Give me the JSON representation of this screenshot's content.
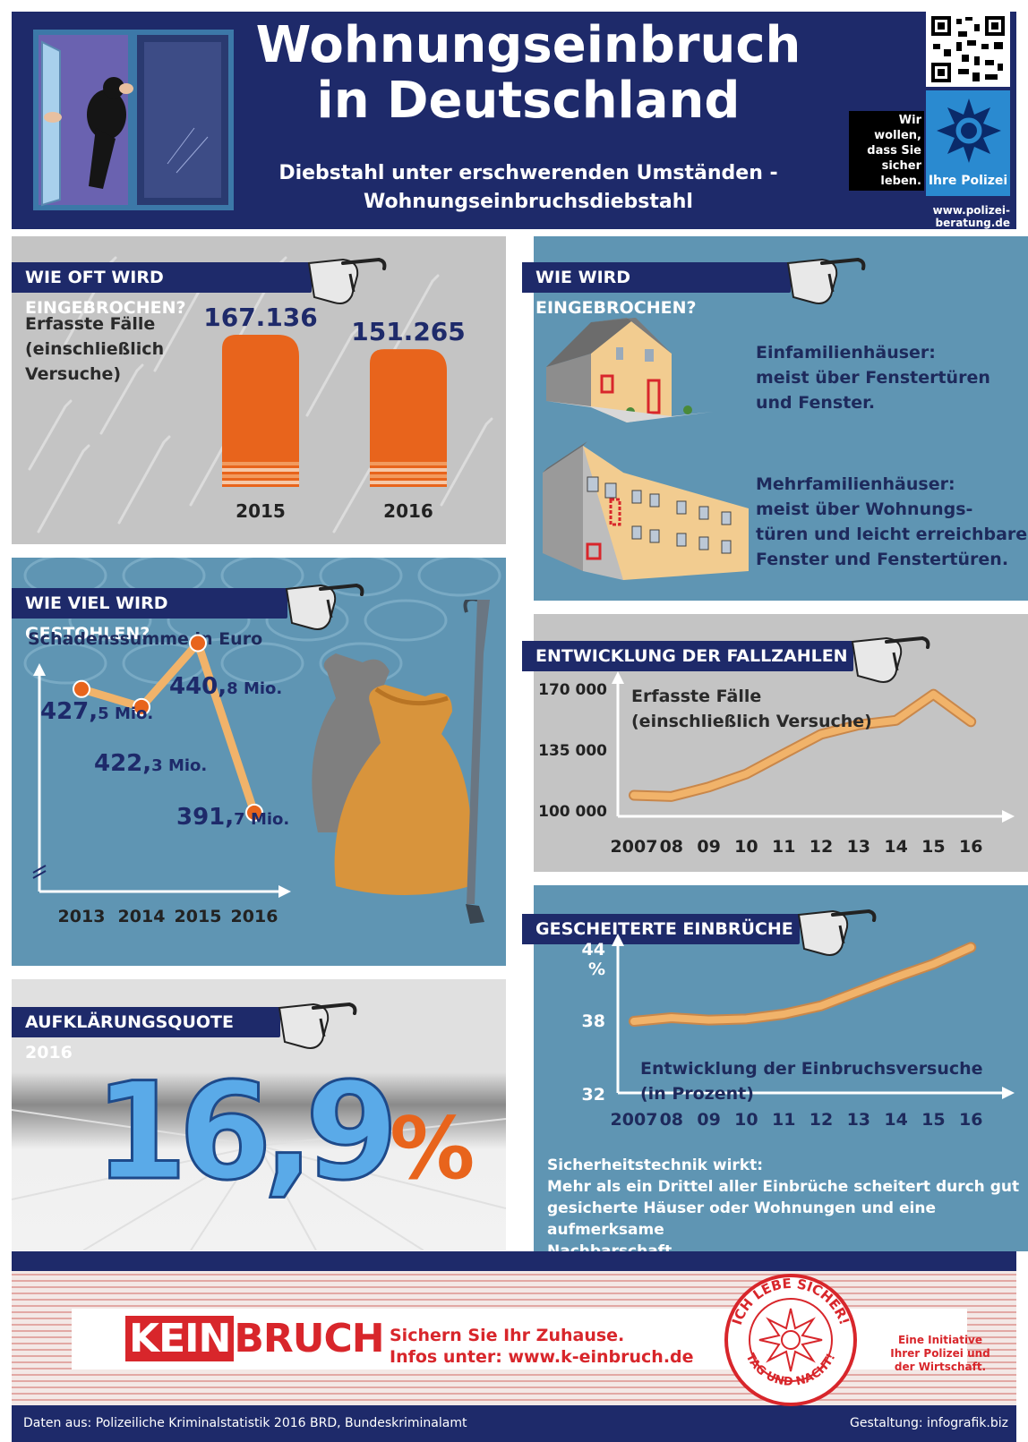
{
  "header": {
    "title_line1": "Wohnungseinbruch",
    "title_line2": "in Deutschland",
    "subtitle_line1": "Diebstahl unter erschwerenden Umständen -",
    "subtitle_line2": "Wohnungseinbruchsdiebstahl",
    "police_slogan_l1": "Wir wollen,",
    "police_slogan_l2": "dass Sie",
    "police_slogan_l3": "sicher leben.",
    "police_name": "Ihre Polizei",
    "url": "www.polizei-beratung.de"
  },
  "sections": {
    "how_often": {
      "title": "WIE OFT WIRD EINGEBROCHEN?",
      "caption_l1": "Erfasste Fälle",
      "caption_l2": "(einschließlich",
      "caption_l3": "Versuche)"
    },
    "how": {
      "title": "WIE WIRD EINGEBROCHEN?",
      "single_l1": "Einfamilienhäuser:",
      "single_l2": "meist über Fenstertüren",
      "single_l3": "und Fenster.",
      "multi_l1": "Mehrfamilienhäuser:",
      "multi_l2": "meist über Wohnungs-",
      "multi_l3": "türen und leicht erreichbare",
      "multi_l4": "Fenster und Fenstertüren."
    },
    "how_much": {
      "title": "WIE VIEL WIRD GESTOHLEN?",
      "caption": "Schadenssumme in Euro"
    },
    "development": {
      "title": "ENTWICKLUNG DER FALLZAHLEN",
      "caption_l1": "Erfasste Fälle",
      "caption_l2": "(einschließlich Versuche)"
    },
    "clearance": {
      "title": "AUFKLÄRUNGSQUOTE 2016",
      "value_num": "16,9",
      "value_pct": "%"
    },
    "failed": {
      "title": "GESCHEITERTE EINBRÜCHE",
      "caption_l1": "Entwicklung der Einbruchsversuche",
      "caption_l2": "(in Prozent)",
      "note_l1": "Sicherheitstechnik wirkt:",
      "note_l2": "Mehr als ein Drittel aller Einbrüche scheitert durch gut",
      "note_l3": "gesicherte Häuser oder Wohnungen und eine aufmerksame",
      "note_l4": "Nachbarschaft."
    }
  },
  "footer": {
    "brand_kein": "KEIN",
    "brand_bruch": "BRUCH",
    "tag_l1": "Sichern Sie Ihr Zuhause.",
    "tag_l2": "Infos unter: www.k-einbruch.de",
    "seal_top": "ICH LEBE SICHER!",
    "seal_bottom": "TAG UND NACHT!",
    "initiative_l1": "Eine Initiative",
    "initiative_l2": "Ihrer Polizei und",
    "initiative_l3": "der Wirtschaft.",
    "source": "Daten aus: Polizeiliche Kriminalstatistik 2016 BRD, Bundeskriminalamt",
    "design": "Gestaltung: infografik.biz"
  },
  "colors": {
    "navy": "#1e2a6a",
    "orange": "#e8641c",
    "blue_panel": "#5f95b3",
    "gray_panel": "#c4c4c4",
    "line_fill": "#f1b36a",
    "red": "#d8262b"
  },
  "chart_data": [
    {
      "type": "bar",
      "categories": [
        "2015",
        "2016"
      ],
      "values": [
        167136,
        151265
      ],
      "value_labels": [
        "167.136",
        "151.265"
      ],
      "title": "",
      "ylabel": ""
    },
    {
      "type": "line",
      "x": [
        "2013",
        "2014",
        "2015",
        "2016"
      ],
      "values": [
        427.5,
        422.3,
        440.8,
        391.7
      ],
      "value_labels": [
        {
          "main": "427,",
          "small": "5 Mio."
        },
        {
          "main": "422,",
          "small": "3 Mio."
        },
        {
          "main": "440,",
          "small": "8 Mio."
        },
        {
          "main": "391,",
          "small": "7 Mio."
        }
      ],
      "ylabel": "",
      "y_axis_break": true
    },
    {
      "type": "line",
      "x": [
        "2007",
        "08",
        "09",
        "10",
        "11",
        "12",
        "13",
        "14",
        "15",
        "16"
      ],
      "values": [
        109000,
        108300,
        113800,
        121300,
        132800,
        144100,
        149500,
        152100,
        167100,
        151300
      ],
      "yticks": [
        "170 000",
        "135 000",
        "100 000"
      ],
      "ylim": [
        100000,
        170000
      ],
      "title": ""
    },
    {
      "type": "line",
      "x": [
        "2007",
        "08",
        "09",
        "10",
        "11",
        "12",
        "13",
        "14",
        "15",
        "16"
      ],
      "values": [
        38.0,
        38.3,
        38.1,
        38.2,
        38.6,
        39.3,
        40.5,
        41.7,
        42.8,
        44.2
      ],
      "yticks": [
        "44",
        "38",
        "32"
      ],
      "y_unit": "%",
      "ylim": [
        32,
        44
      ]
    }
  ]
}
